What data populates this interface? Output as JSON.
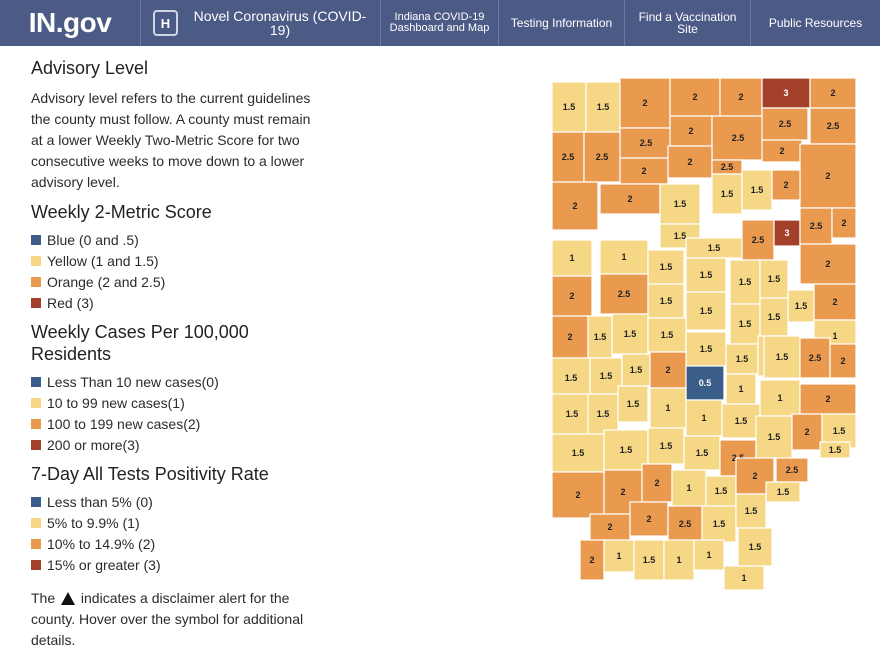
{
  "nav": {
    "logo_text": "IN.gov",
    "covid_badge": "H",
    "covid_label": "Novel Coronavirus (COVID-19)",
    "dashboard_label": "Indiana COVID-19 Dashboard and Map",
    "testing_label": "Testing Information",
    "vaccination_label": "Find a Vaccination Site",
    "public_label": "Public Resources"
  },
  "advisory": {
    "title": "Advisory Level",
    "description": "Advisory level refers to the current guidelines the county must follow. A county must remain at a lower Weekly Two-Metric Score for two consecutive weeks to move down to a lower advisory level."
  },
  "sections": [
    {
      "title": "Weekly 2-Metric Score",
      "items": [
        {
          "label": "Blue (0 and .5)",
          "color": "#3b5d8a"
        },
        {
          "label": "Yellow (1 and 1.5)",
          "color": "#f6d785"
        },
        {
          "label": "Orange (2 and 2.5)",
          "color": "#e99a4f"
        },
        {
          "label": "Red (3)",
          "color": "#a3402b"
        }
      ]
    },
    {
      "title": "Weekly Cases Per 100,000 Residents",
      "items": [
        {
          "label": "Less Than 10 new cases(0)",
          "color": "#3b5d8a"
        },
        {
          "label": "10 to 99 new cases(1)",
          "color": "#f6d785"
        },
        {
          "label": "100 to 199 new cases(2)",
          "color": "#e99a4f"
        },
        {
          "label": "200 or more(3)",
          "color": "#a3402b"
        }
      ]
    },
    {
      "title": "7-Day All Tests Positivity Rate",
      "items": [
        {
          "label": "Less than 5% (0)",
          "color": "#3b5d8a"
        },
        {
          "label": "5% to 9.9% (1)",
          "color": "#f6d785"
        },
        {
          "label": "10% to 14.9% (2)",
          "color": "#e99a4f"
        },
        {
          "label": "15% or greater (3)",
          "color": "#a3402b"
        }
      ]
    }
  ],
  "disclaimer": {
    "before": "The",
    "after": "indicates a disclaimer alert for the county. Hover over the symbol for additional details."
  },
  "map": {
    "colors": {
      "0.5": "#3b5d8a",
      "1": "#f6d785",
      "1.5": "#f6d785",
      "2": "#e99a4f",
      "2.5": "#e99a4f",
      "3": "#a3402b"
    },
    "counties": [
      {
        "score": "1.5"
      },
      {
        "score": "1.5"
      },
      {
        "score": "2"
      },
      {
        "score": "2"
      },
      {
        "score": "2"
      },
      {
        "score": "3"
      },
      {
        "score": "2"
      },
      {
        "score": "2.5"
      },
      {
        "score": "2"
      },
      {
        "score": "2.5"
      },
      {
        "score": "2.5"
      },
      {
        "score": "2.5"
      },
      {
        "score": "2.5"
      },
      {
        "score": "2.5"
      },
      {
        "score": "2"
      },
      {
        "score": "2"
      },
      {
        "score": "2.5"
      },
      {
        "score": "2"
      },
      {
        "score": "2"
      },
      {
        "score": "1.5"
      },
      {
        "score": "1.5"
      },
      {
        "score": "2"
      },
      {
        "score": "2"
      },
      {
        "score": "1.5"
      },
      {
        "score": "2"
      },
      {
        "score": "1.5"
      },
      {
        "score": "1.5"
      },
      {
        "score": "2.5"
      },
      {
        "score": "3"
      },
      {
        "score": "2.5"
      },
      {
        "score": "2"
      },
      {
        "score": "1"
      },
      {
        "score": "1"
      },
      {
        "score": "1.5"
      },
      {
        "score": "1.5"
      },
      {
        "score": "1.5"
      },
      {
        "score": "1.5"
      },
      {
        "score": "2"
      },
      {
        "score": "2"
      },
      {
        "score": "2.5"
      },
      {
        "score": "1.5"
      },
      {
        "score": "1.5"
      },
      {
        "score": "1.5"
      },
      {
        "score": "1.5"
      },
      {
        "score": "1.5"
      },
      {
        "score": "2"
      },
      {
        "score": "2"
      },
      {
        "score": "1.5"
      },
      {
        "score": "1.5"
      },
      {
        "score": "1.5"
      },
      {
        "score": "1.5"
      },
      {
        "score": "1.5"
      },
      {
        "score": "1.5"
      },
      {
        "score": "1"
      },
      {
        "score": "1.5"
      },
      {
        "score": "1.5"
      },
      {
        "score": "1.5"
      },
      {
        "score": "2"
      },
      {
        "score": "0.5"
      },
      {
        "score": "1"
      },
      {
        "score": "1.5"
      },
      {
        "score": "2.5"
      },
      {
        "score": "2"
      },
      {
        "score": "1.5"
      },
      {
        "score": "1.5"
      },
      {
        "score": "1.5"
      },
      {
        "score": "1"
      },
      {
        "score": "1"
      },
      {
        "score": "1.5"
      },
      {
        "score": "1"
      },
      {
        "score": "2"
      },
      {
        "score": "1.5"
      },
      {
        "score": "1.5"
      },
      {
        "score": "1.5"
      },
      {
        "score": "1.5"
      },
      {
        "score": "2.5"
      },
      {
        "score": "1.5"
      },
      {
        "score": "2"
      },
      {
        "score": "1.5"
      },
      {
        "score": "1.5"
      },
      {
        "score": "2"
      },
      {
        "score": "2"
      },
      {
        "score": "1"
      },
      {
        "score": "1.5"
      },
      {
        "score": "2"
      },
      {
        "score": "2.5"
      },
      {
        "score": "2"
      },
      {
        "score": "2"
      },
      {
        "score": "2"
      },
      {
        "score": "2.5"
      },
      {
        "score": "1.5"
      },
      {
        "score": "1.5"
      },
      {
        "score": "1.5"
      },
      {
        "score": "1.5"
      },
      {
        "score": "2"
      },
      {
        "score": "1"
      },
      {
        "score": "1.5"
      },
      {
        "score": "1"
      },
      {
        "score": "1"
      },
      {
        "score": "1"
      }
    ]
  }
}
